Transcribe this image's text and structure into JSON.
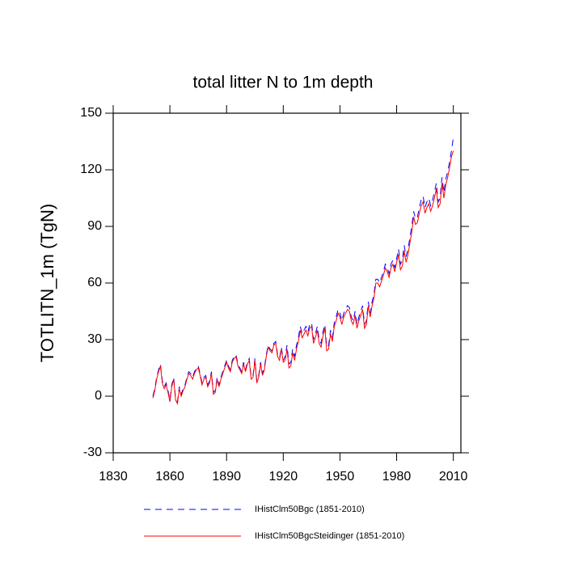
{
  "chart_data": {
    "type": "line",
    "title": "total litter N to 1m depth",
    "y_label": "TOTLITN_1m  (TgN)",
    "xlim": [
      1830,
      2014
    ],
    "xticks": [
      1830,
      1860,
      1890,
      1920,
      1950,
      1980,
      2010
    ],
    "ylim": [
      -30,
      150
    ],
    "yticks": [
      -30,
      0,
      30,
      60,
      90,
      120,
      150
    ],
    "legend": "bottom",
    "x": [
      1851,
      1852,
      1853,
      1854,
      1855,
      1856,
      1857,
      1858,
      1859,
      1860,
      1861,
      1862,
      1863,
      1864,
      1865,
      1866,
      1867,
      1868,
      1869,
      1870,
      1871,
      1872,
      1873,
      1874,
      1875,
      1876,
      1877,
      1878,
      1879,
      1880,
      1881,
      1882,
      1883,
      1884,
      1885,
      1886,
      1887,
      1888,
      1889,
      1890,
      1891,
      1892,
      1893,
      1894,
      1895,
      1896,
      1897,
      1898,
      1899,
      1900,
      1901,
      1902,
      1903,
      1904,
      1905,
      1906,
      1907,
      1908,
      1909,
      1910,
      1911,
      1912,
      1913,
      1914,
      1915,
      1916,
      1917,
      1918,
      1919,
      1920,
      1921,
      1922,
      1923,
      1924,
      1925,
      1926,
      1927,
      1928,
      1929,
      1930,
      1931,
      1932,
      1933,
      1934,
      1935,
      1936,
      1937,
      1938,
      1939,
      1940,
      1941,
      1942,
      1943,
      1944,
      1945,
      1946,
      1947,
      1948,
      1949,
      1950,
      1951,
      1952,
      1953,
      1954,
      1955,
      1956,
      1957,
      1958,
      1959,
      1960,
      1961,
      1962,
      1963,
      1964,
      1965,
      1966,
      1967,
      1968,
      1969,
      1970,
      1971,
      1972,
      1973,
      1974,
      1975,
      1976,
      1977,
      1978,
      1979,
      1980,
      1981,
      1982,
      1983,
      1984,
      1985,
      1986,
      1987,
      1988,
      1989,
      1990,
      1991,
      1992,
      1993,
      1994,
      1995,
      1996,
      1997,
      1998,
      1999,
      2000,
      2001,
      2002,
      2003,
      2004,
      2005,
      2006,
      2007,
      2008,
      2009,
      2010
    ],
    "series": [
      {
        "name": "IHistClm50Bgc (1851-2010)",
        "color": "#0000ff",
        "dashed": true,
        "values": [
          0,
          4,
          10,
          14,
          17,
          8,
          5,
          7,
          3,
          -2,
          6,
          10,
          -1,
          -3,
          5,
          1,
          4,
          6,
          10,
          13,
          12,
          10,
          13,
          15,
          16,
          12,
          7,
          10,
          11,
          6,
          8,
          13,
          2,
          3,
          10,
          6,
          10,
          13,
          16,
          19,
          16,
          14,
          19,
          21,
          22,
          17,
          15,
          13,
          18,
          14,
          18,
          20,
          10,
          11,
          20,
          8,
          11,
          18,
          12,
          15,
          22,
          27,
          25,
          24,
          28,
          29,
          22,
          20,
          26,
          19,
          21,
          27,
          17,
          18,
          25,
          21,
          27,
          31,
          37,
          33,
          35,
          37,
          34,
          38,
          39,
          30,
          33,
          37,
          30,
          28,
          34,
          38,
          26,
          27,
          35,
          31,
          39,
          42,
          46,
          44,
          40,
          44,
          46,
          48,
          47,
          42,
          40,
          45,
          38,
          42,
          45,
          48,
          38,
          40,
          50,
          44,
          50,
          54,
          62,
          62,
          60,
          63,
          66,
          70,
          68,
          65,
          70,
          72,
          68,
          73,
          78,
          70,
          72,
          80,
          74,
          78,
          84,
          90,
          98,
          94,
          95,
          100,
          104,
          106,
          100,
          103,
          105,
          101,
          104,
          108,
          113,
          103,
          105,
          116,
          108,
          115,
          119,
          124,
          130,
          137
        ]
      },
      {
        "name": "IHistClm50BgcSteidinger (1851-2010)",
        "color": "#ff0000",
        "dashed": false,
        "values": [
          -1,
          3,
          9,
          13,
          16,
          7,
          4,
          6,
          2,
          -3,
          5,
          9,
          -2,
          -4,
          4,
          0,
          3,
          5,
          9,
          12,
          11,
          9,
          12,
          14,
          15,
          11,
          6,
          9,
          10,
          5,
          7,
          12,
          1,
          2,
          9,
          5,
          9,
          12,
          15,
          18,
          15,
          13,
          18,
          20,
          21,
          16,
          14,
          12,
          17,
          13,
          17,
          19,
          9,
          10,
          19,
          7,
          10,
          17,
          11,
          14,
          21,
          26,
          24,
          23,
          27,
          28,
          21,
          19,
          25,
          18,
          19,
          25,
          15,
          16,
          23,
          19,
          25,
          29,
          35,
          31,
          33,
          35,
          32,
          36,
          37,
          28,
          31,
          35,
          28,
          26,
          32,
          36,
          24,
          25,
          33,
          29,
          37,
          40,
          44,
          42,
          38,
          42,
          44,
          46,
          45,
          40,
          38,
          43,
          36,
          40,
          43,
          46,
          36,
          38,
          48,
          42,
          48,
          52,
          60,
          60,
          58,
          61,
          64,
          68,
          66,
          63,
          68,
          70,
          66,
          71,
          75,
          67,
          69,
          77,
          71,
          75,
          81,
          87,
          95,
          91,
          92,
          97,
          101,
          103,
          97,
          100,
          102,
          98,
          101,
          105,
          110,
          100,
          102,
          113,
          105,
          112,
          116,
          121,
          127,
          130
        ]
      }
    ]
  }
}
